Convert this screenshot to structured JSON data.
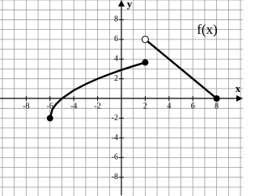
{
  "chart_data": {
    "type": "function-plot",
    "annotation": "f(x)",
    "x_label": "x",
    "y_label": "y",
    "xlim": [
      -10.2,
      10.2
    ],
    "ylim": [
      -9.9,
      10
    ],
    "xticks": [
      -8,
      -6,
      -4,
      -2,
      2,
      4,
      6,
      8
    ],
    "yticks": [
      -8,
      -6,
      -4,
      -2,
      2,
      4,
      6,
      8
    ],
    "xgrid": [
      -10,
      -9,
      -8,
      -7,
      -6,
      -5,
      -4,
      -3,
      -2,
      -1,
      0,
      1,
      2,
      3,
      4,
      5,
      6,
      7,
      8,
      9,
      10
    ],
    "ygrid": [
      -9,
      -8,
      -7,
      -6,
      -5,
      -4,
      -3,
      -2,
      -1,
      0,
      1,
      2,
      3,
      4,
      5,
      6,
      7,
      8,
      9,
      10
    ],
    "series": [
      {
        "color": "#000000",
        "x": [
          -6,
          -5.8,
          -5.5,
          -5,
          -4,
          -3,
          -2,
          -1,
          0,
          1,
          2
        ],
        "values": [
          -2,
          -1.11,
          -0.59,
          0,
          0.83,
          1.46,
          2,
          2.47,
          2.9,
          3.29,
          3.66
        ]
      },
      {
        "color": "#000000",
        "x": [
          2,
          8
        ],
        "values": [
          6,
          0
        ]
      }
    ],
    "closed_points": {
      "x": [
        -6,
        2,
        8
      ],
      "values": [
        -2,
        3.66,
        0
      ]
    },
    "open_points": {
      "x": [
        2
      ],
      "values": [
        6
      ]
    }
  }
}
